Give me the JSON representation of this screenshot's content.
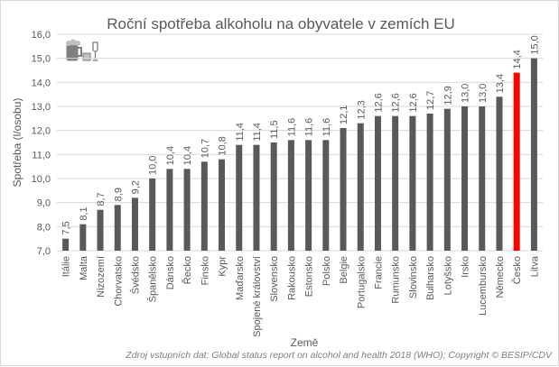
{
  "chart_data": {
    "type": "bar",
    "title": "Roční spotřeba alkoholu na obyvatele v zemích EU",
    "xlabel": "Země",
    "ylabel": "Spotřeba (l/osobu)",
    "ylim": [
      7,
      16
    ],
    "yticks": [
      "7,0",
      "8,0",
      "9,0",
      "10,0",
      "11,0",
      "12,0",
      "13,0",
      "14,0",
      "15,0",
      "16,0"
    ],
    "grid": true,
    "categories": [
      "Itálie",
      "Malta",
      "Nizozemí",
      "Chorvatsko",
      "Švédsko",
      "Španělsko",
      "Dánsko",
      "Řecko",
      "Finsko",
      "Kypr",
      "Maďarsko",
      "Spojené království",
      "Slovensko",
      "Rakousko",
      "Estonsko",
      "Polsko",
      "Belgie",
      "Portugalsko",
      "Francie",
      "Rumunsko",
      "Slovinsko",
      "Bulharsko",
      "Lotyšsko",
      "Irsko",
      "Lucembursko",
      "Německo",
      "Česko",
      "Litva"
    ],
    "values": [
      7.5,
      8.1,
      8.7,
      8.9,
      9.2,
      10.0,
      10.4,
      10.4,
      10.7,
      10.8,
      11.4,
      11.4,
      11.5,
      11.6,
      11.6,
      11.6,
      12.1,
      12.3,
      12.6,
      12.6,
      12.6,
      12.7,
      12.9,
      13.0,
      13.0,
      13.4,
      14.4,
      15.0
    ],
    "highlight": "Česko",
    "colors": {
      "bar": "#595959",
      "highlight": "#ff0000",
      "grid": "#d9d9d9",
      "text": "#595959"
    },
    "source": "Zdroj vstupních dat: Global status report on alcohol and health 2018 (WHO); Copyright © BESIP/CDV",
    "icon": "beer-whisky-wine-icon"
  }
}
